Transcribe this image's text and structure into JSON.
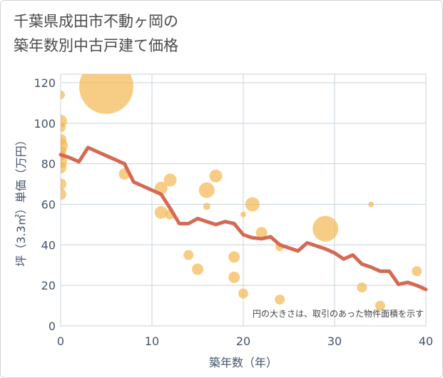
{
  "title_lines": [
    "千葉県成田市不動ヶ岡の",
    "築年数別中古戸建て価格"
  ],
  "chart_data": {
    "type": "scatter",
    "title": "千葉県成田市不動ヶ岡の築年数別中古戸建て価格",
    "xlabel": "築年数（年）",
    "ylabel": "坪（3.3㎡）単価（万円）",
    "xlim": [
      0,
      40
    ],
    "ylim": [
      0,
      120
    ],
    "xticks": [
      0,
      10,
      20,
      30,
      40
    ],
    "yticks": [
      0,
      20,
      40,
      60,
      80,
      100,
      120
    ],
    "grid": true,
    "note": "円の大きさは、取引のあった物件面積を示す",
    "colors": {
      "bubble": "#f2b244",
      "line": "#d46a54",
      "grid": "#c8d3de"
    },
    "bubbles": [
      {
        "x": 0,
        "y": 114,
        "size": 6
      },
      {
        "x": 0,
        "y": 101,
        "size": 9
      },
      {
        "x": 0,
        "y": 98,
        "size": 7
      },
      {
        "x": 0,
        "y": 92,
        "size": 8
      },
      {
        "x": 0,
        "y": 89,
        "size": 10
      },
      {
        "x": 0,
        "y": 86,
        "size": 8
      },
      {
        "x": 0,
        "y": 84,
        "size": 7
      },
      {
        "x": 0,
        "y": 81,
        "size": 9
      },
      {
        "x": 0,
        "y": 78,
        "size": 8
      },
      {
        "x": 0,
        "y": 70,
        "size": 8
      },
      {
        "x": 0,
        "y": 65,
        "size": 8
      },
      {
        "x": 5,
        "y": 118,
        "size": 38
      },
      {
        "x": 7,
        "y": 75,
        "size": 8
      },
      {
        "x": 11,
        "y": 68,
        "size": 9
      },
      {
        "x": 11,
        "y": 56,
        "size": 9
      },
      {
        "x": 12,
        "y": 72,
        "size": 9
      },
      {
        "x": 12,
        "y": 55,
        "size": 7
      },
      {
        "x": 14,
        "y": 35,
        "size": 7
      },
      {
        "x": 15,
        "y": 28,
        "size": 8
      },
      {
        "x": 16,
        "y": 67,
        "size": 11
      },
      {
        "x": 16,
        "y": 59,
        "size": 5
      },
      {
        "x": 17,
        "y": 74,
        "size": 9
      },
      {
        "x": 19,
        "y": 34,
        "size": 8
      },
      {
        "x": 19,
        "y": 24,
        "size": 8
      },
      {
        "x": 20,
        "y": 55,
        "size": 4
      },
      {
        "x": 20,
        "y": 16,
        "size": 7
      },
      {
        "x": 21,
        "y": 60,
        "size": 10
      },
      {
        "x": 22,
        "y": 46,
        "size": 8
      },
      {
        "x": 24,
        "y": 39,
        "size": 6
      },
      {
        "x": 24,
        "y": 13,
        "size": 7
      },
      {
        "x": 29,
        "y": 48,
        "size": 18
      },
      {
        "x": 33,
        "y": 19,
        "size": 7
      },
      {
        "x": 34,
        "y": 60,
        "size": 4
      },
      {
        "x": 35,
        "y": 10,
        "size": 7
      },
      {
        "x": 39,
        "y": 27,
        "size": 7
      }
    ],
    "trend_line": {
      "x": [
        0,
        1,
        2,
        3,
        4,
        5,
        6,
        7,
        8,
        9,
        10,
        11,
        12,
        13,
        14,
        15,
        16,
        17,
        18,
        19,
        20,
        21,
        22,
        23,
        24,
        25,
        26,
        27,
        28,
        29,
        30,
        31,
        32,
        33,
        34,
        35,
        36,
        37,
        38,
        39,
        40
      ],
      "y": [
        84.5,
        83,
        81,
        88,
        86,
        84,
        82,
        80,
        71,
        69,
        67,
        65,
        58,
        50.5,
        50.5,
        53,
        51.5,
        50,
        51.5,
        50.5,
        45,
        43.5,
        43,
        44,
        40,
        38.5,
        37,
        41,
        39.5,
        38,
        36,
        33,
        35,
        30.5,
        29,
        27,
        27,
        20.5,
        21.5,
        20,
        18
      ]
    }
  }
}
